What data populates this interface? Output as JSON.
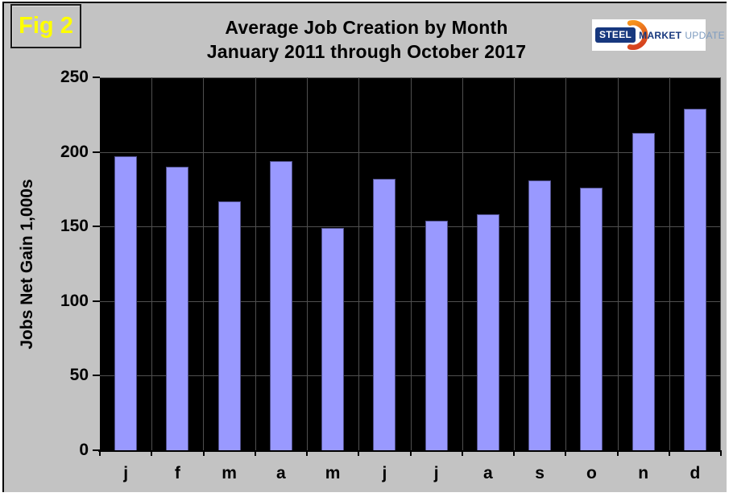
{
  "figure_label": "Fig 2",
  "title": {
    "line1": "Average Job Creation by Month",
    "line2": "January 2011 through October 2017"
  },
  "logo": {
    "steel": "STEEL",
    "market": "MARKET",
    "update": "UPDATE"
  },
  "chart_data": {
    "type": "bar",
    "title": "Average Job Creation by Month",
    "subtitle": "January 2011 through October 2017",
    "categories": [
      "j",
      "f",
      "m",
      "a",
      "m",
      "j",
      "j",
      "a",
      "s",
      "o",
      "n",
      "d"
    ],
    "values": [
      197,
      190,
      167,
      194,
      149,
      182,
      154,
      158,
      181,
      176,
      213,
      229
    ],
    "xlabel": "",
    "ylabel": "Jobs Net Gain 1,000s",
    "ylim": [
      0,
      250
    ],
    "yticks": [
      0,
      50,
      100,
      150,
      200,
      250
    ],
    "grid": "both",
    "legend": "none",
    "colors": {
      "bar_fill": "#9999ff",
      "bar_border": "#50508c",
      "plot_background": "#000000",
      "gridline": "#4f4f4f",
      "gridline_top": "#6a6a6a",
      "panel_background": "#c3c3c3",
      "figure_label_color": "#ffff00",
      "logo_blue": "#17387e",
      "logo_light_blue": "#7e9cc0",
      "logo_orange_top": "#f7941d",
      "logo_orange_bottom": "#d6431f"
    }
  }
}
